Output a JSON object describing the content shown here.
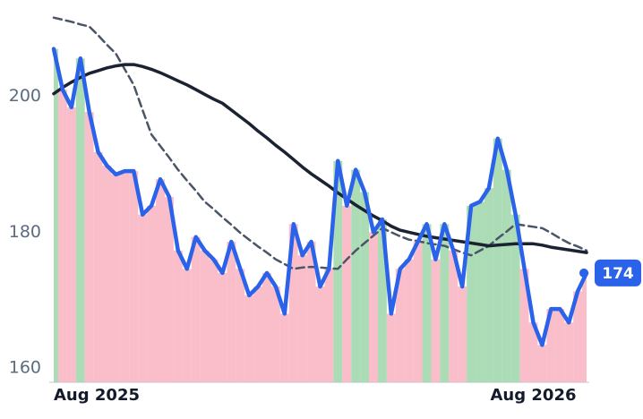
{
  "chart_data": {
    "type": "line",
    "categories": [
      "Aug 2025",
      null,
      null,
      null,
      null,
      null,
      null,
      null,
      null,
      null,
      null,
      null,
      null,
      null,
      null,
      null,
      null,
      null,
      null,
      null,
      null,
      null,
      null,
      null,
      null,
      null,
      null,
      null,
      null,
      null,
      null,
      null,
      null,
      null,
      null,
      null,
      null,
      null,
      null,
      null,
      null,
      null,
      null,
      null,
      null,
      null,
      null,
      null,
      null,
      null,
      null,
      null,
      null,
      null,
      "Aug 2026",
      null,
      null,
      null,
      null,
      null,
      null
    ],
    "series": [
      {
        "color": "#2a62ea",
        "values": [
          207,
          201,
          198.4,
          205.6,
          197.7,
          191.8,
          189.8,
          188.5,
          189,
          189,
          182.6,
          183.9,
          187.8,
          185.2,
          177.3,
          174.6,
          179.3,
          177.3,
          176,
          174,
          178.6,
          174.6,
          170.7,
          172,
          174,
          172,
          168,
          181.2,
          176.6,
          178.6,
          172,
          174.6,
          190.5,
          183.9,
          189.2,
          185.9,
          180,
          181.9,
          168,
          174.6,
          176,
          178.6,
          181.2,
          176,
          181.2,
          177.3,
          172,
          183.9,
          184.5,
          186.5,
          193.8,
          189.2,
          182.6,
          174.6,
          166.7,
          163.4,
          168.7,
          168.7,
          166.7,
          171.3,
          174
        ]
      },
      {
        "color": "#1b2232",
        "values": [
          200.4,
          201.3,
          202.1,
          202.8,
          203.4,
          203.8,
          204.2,
          204.5,
          204.7,
          204.7,
          204.4,
          204,
          203.5,
          202.9,
          202.3,
          201.7,
          201,
          200.3,
          199.6,
          199,
          198,
          197,
          196,
          194.9,
          193.9,
          192.8,
          191.8,
          190.7,
          189.6,
          188.6,
          187.7,
          186.8,
          185.8,
          184.9,
          184,
          183.2,
          182.4,
          181.7,
          180.9,
          180.3,
          180,
          179.7,
          179.4,
          179.2,
          179,
          178.8,
          178.6,
          178.4,
          178.2,
          178,
          178.1,
          178.2,
          178.3,
          178.3,
          178.3,
          178.1,
          177.8,
          177.6,
          177.4,
          177.2,
          177
        ]
      },
      {
        "color": "#4b5568",
        "dashed": true,
        "values": [
          211.6,
          211.3,
          211,
          210.6,
          210.3,
          209,
          207.6,
          206.3,
          204,
          201.7,
          198,
          194.4,
          192.7,
          191,
          189.2,
          187.6,
          186.1,
          184.5,
          183.4,
          182.2,
          181.1,
          179.9,
          178.9,
          177.9,
          177,
          176,
          175.3,
          174.6,
          174.8,
          174.9,
          174.8,
          174.7,
          174.6,
          176,
          177.3,
          178.4,
          179.5,
          180.6,
          180,
          179.4,
          178.9,
          178.7,
          178.4,
          178.2,
          178,
          177.5,
          177,
          176.6,
          177.3,
          178,
          179.1,
          180.1,
          181.2,
          181,
          180.8,
          180.6,
          179.9,
          179.1,
          178.4,
          177.9,
          177.3
        ]
      }
    ],
    "up_color": "#9cd6a9",
    "down_color": "#f8b3c0",
    "ylim": [
      157.9,
      214.2
    ],
    "yticks": [
      160,
      180,
      200
    ]
  }
}
